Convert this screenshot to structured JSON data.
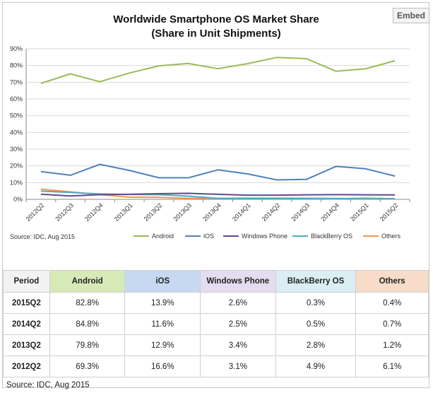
{
  "embed_label": "Embed",
  "chart_data": {
    "type": "line",
    "title": "Worldwide Smartphone OS Market Share",
    "subtitle": "(Share in Unit Shipments)",
    "source": "Source: IDC, Aug 2015",
    "categories": [
      "2012Q2",
      "2012Q3",
      "2012Q4",
      "2013Q1",
      "2013Q2",
      "2013Q3",
      "2013Q4",
      "2014Q1",
      "2014Q2",
      "2014Q3",
      "2014Q4",
      "2015Q1",
      "2015Q2"
    ],
    "ylim": [
      0,
      90
    ],
    "yticks": [
      "0%",
      "10%",
      "20%",
      "30%",
      "40%",
      "50%",
      "60%",
      "70%",
      "80%",
      "90%"
    ],
    "grid": true,
    "legend": "bottom",
    "series": [
      {
        "name": "Android",
        "color": "#9bbb59",
        "values": [
          69.3,
          75.0,
          70.3,
          75.5,
          79.8,
          81.2,
          78.1,
          81.1,
          84.8,
          84.1,
          76.6,
          78.0,
          82.8
        ]
      },
      {
        "name": "iOS",
        "color": "#4f81bd",
        "values": [
          16.6,
          14.4,
          20.9,
          17.3,
          12.9,
          12.9,
          17.6,
          15.2,
          11.6,
          11.9,
          19.7,
          18.3,
          13.9
        ]
      },
      {
        "name": "Windows Phone",
        "color": "#5f4b8b",
        "values": [
          3.1,
          2.0,
          2.8,
          3.0,
          3.4,
          3.6,
          3.0,
          2.5,
          2.5,
          2.7,
          2.8,
          2.7,
          2.6
        ]
      },
      {
        "name": "BlackBerry OS",
        "color": "#4bacc6",
        "values": [
          4.9,
          4.1,
          3.2,
          2.9,
          2.8,
          1.9,
          0.6,
          0.5,
          0.5,
          0.6,
          0.5,
          0.3,
          0.3
        ]
      },
      {
        "name": "Others",
        "color": "#f79646",
        "values": [
          6.1,
          4.5,
          2.8,
          1.3,
          1.2,
          0.6,
          0.6,
          0.7,
          0.7,
          0.6,
          0.4,
          0.7,
          0.4
        ]
      }
    ]
  },
  "table": {
    "headers": [
      {
        "label": "Period",
        "bg": "#f2f2f2"
      },
      {
        "label": "Android",
        "bg": "#d8e9b8"
      },
      {
        "label": "iOS",
        "bg": "#c6d9f1"
      },
      {
        "label": "Windows Phone",
        "bg": "#e4dcef"
      },
      {
        "label": "BlackBerry OS",
        "bg": "#dbeef3"
      },
      {
        "label": "Others",
        "bg": "#f6dcc9"
      }
    ],
    "rows": [
      [
        "2015Q2",
        "82.8%",
        "13.9%",
        "2.6%",
        "0.3%",
        "0.4%"
      ],
      [
        "2014Q2",
        "84.8%",
        "11.6%",
        "2.5%",
        "0.5%",
        "0.7%"
      ],
      [
        "2013Q2",
        "79.8%",
        "12.9%",
        "3.4%",
        "2.8%",
        "1.2%"
      ],
      [
        "2012Q2",
        "69.3%",
        "16.6%",
        "3.1%",
        "4.9%",
        "6.1%"
      ]
    ],
    "source": "Source: IDC, Aug 2015"
  }
}
